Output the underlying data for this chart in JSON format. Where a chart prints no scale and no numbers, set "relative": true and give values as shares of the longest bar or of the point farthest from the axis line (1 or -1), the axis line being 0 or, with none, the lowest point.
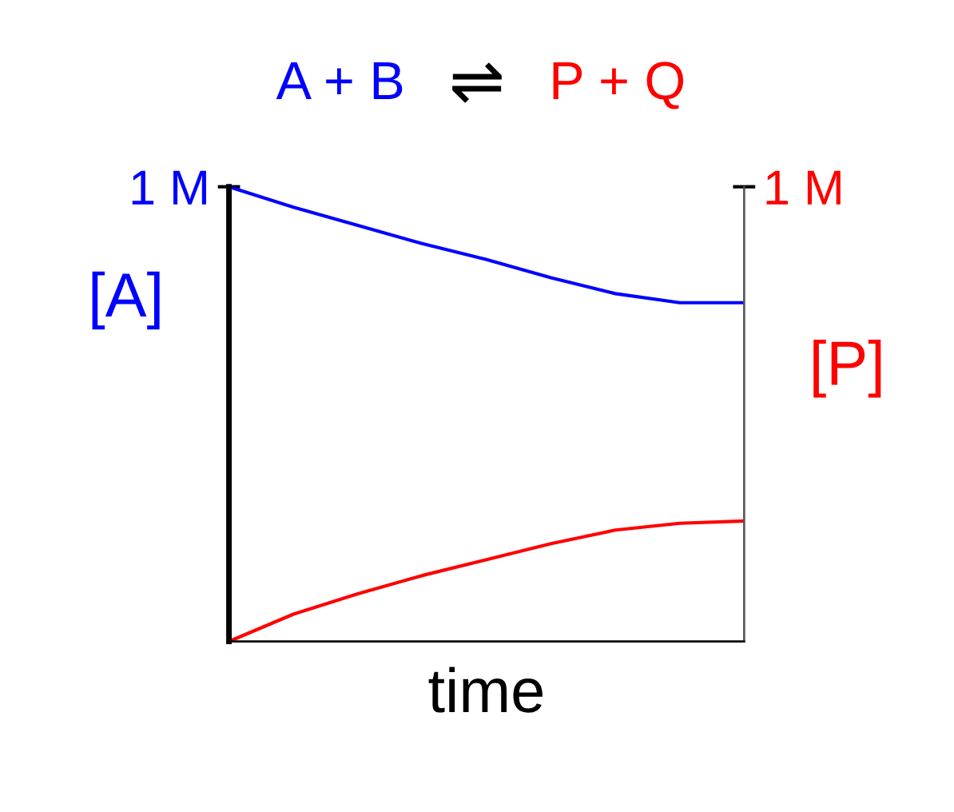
{
  "chart_data": {
    "type": "line",
    "title": "A + B ⇌ P + Q",
    "xlabel": "time",
    "ylabel": "[A]",
    "y2label": "[P]",
    "relative": true,
    "legend": false,
    "grid": false,
    "marker": "none",
    "line_style": "solid",
    "categories": [
      null,
      null,
      null,
      null,
      null,
      null,
      null,
      null,
      null
    ],
    "series": [
      {
        "color": "#0000ff",
        "values": [
          1.0,
          0.955,
          0.915,
          0.875,
          0.84,
          0.8,
          0.765,
          0.745,
          0.745
        ]
      },
      {
        "color": "#ff0000",
        "values": [
          0.0,
          0.06,
          0.105,
          0.145,
          0.18,
          0.215,
          0.245,
          0.26,
          0.265
        ]
      }
    ],
    "annotations": [
      "1 M",
      "1 M"
    ]
  }
}
